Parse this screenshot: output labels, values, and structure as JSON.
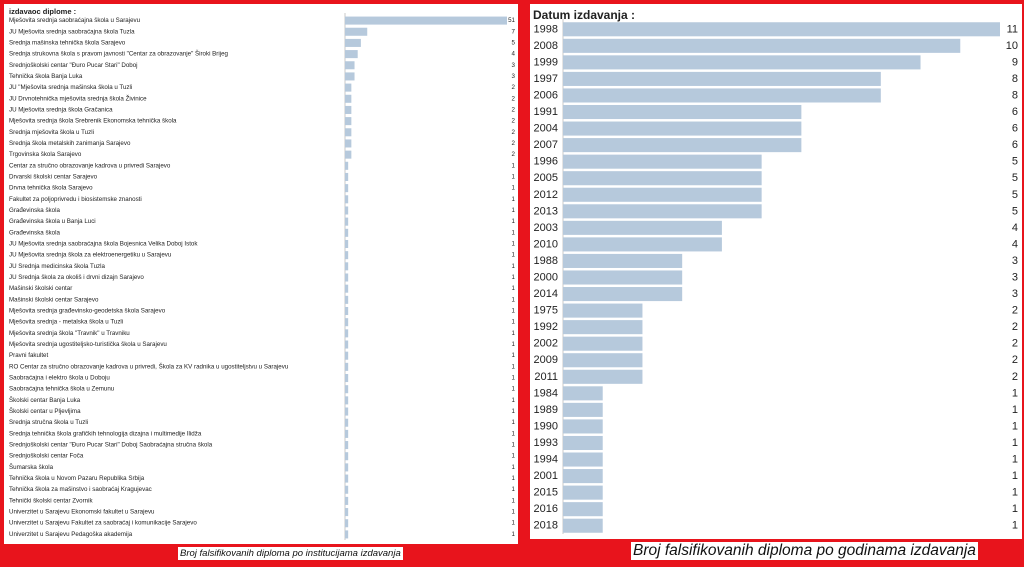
{
  "colors": {
    "bar": "#b6c9dc",
    "axis": "#c8c8c8",
    "frame": "#e8141c",
    "text": "#222222"
  },
  "chart_data": [
    {
      "type": "bar",
      "orientation": "horizontal",
      "title": "izdavaoc diplome :",
      "categories": [
        "Mješovita srednja saobraćajna škola u Sarajevu",
        "JU Mješovita srednja saobraćajna škola Tuzla",
        "Srednja mašinska tehnička škola Sarajevo",
        "Srednja strukovna škola s pravom javnosti \"Centar za obrazovanje\" Široki Brijeg",
        "Srednjoškolski centar \"Đuro Pucar Stari\" Doboj",
        "Tehnička škola Banja Luka",
        "JU \"Mješovita srednja mašinska škola u Tuzli",
        "JU Drvnotehnička mješovita srednja škola Živinice",
        "JU Mješovita srednja škola Gračanica",
        "Mješovita srednja škola Srebrenik Ekonomska tehnička škola",
        "Srednja mješovita škola u Tuzli",
        "Srednja škola metalskih zanimanja Sarajevo",
        "Trgovinska škola Sarajevo",
        "Centar za stručno obrazovanje kadrova u privredi Sarajevo",
        "Drvarski školski centar Sarajevo",
        "Drvna tehnička škola Sarajevo",
        "Fakultet za poljoprivredu i biosistemske znanosti",
        "Građevinska škola",
        "Građevinska škola u Banja Luci",
        "Građevinska škola",
        "JU Mješovita srednja saobraćajna škola Bojesnica Velika Doboj Istok",
        "JU Mješovita srednja škola za elektroenergetiku u Sarajevu",
        "JU Srednja medicinska škola Tuzla",
        "JU Srednja škola za okoliš i drvni dizajn Sarajevo",
        "Mašinski školski centar",
        "Mašinski školski centar Sarajevo",
        "Mješovita srednja građevinsko-geodetska škola Sarajevo",
        "Mješovita srednja - metalska škola u Tuzli",
        "Mješovita srednja škola \"Travnik\" u Travniku",
        "Mješovita srednja ugostiteljsko-turistička škola u Sarajevu",
        "Pravni fakultet",
        "RO Centar za stručno obrazovanje kadrova u privredi, Škola za KV radnika u ugostiteljstvu u Sarajevu",
        "Saobraćajna i elektro škola u Doboju",
        "Saobraćajna tehnička škola u Zemunu",
        "Školski centar Banja Luka",
        "Školski centar u Pljevljima",
        "Srednja stručna škola u Tuzli",
        "Srednja tehnička škola grafičkih tehnologija dizajna i multimedije Ilidža",
        "Srednjoškolski centar \"Đuro Pucar Stari\" Doboj Saobraćajna stručna škola",
        "Srednjoškolski centar Foča",
        "Šumarska škola",
        "Tehnička škola u Novom Pazaru Republika Srbija",
        "Tehnička škola za mašinstvo i saobraćaj Kragujevac",
        "Tehnički školski centar Zvornik",
        "Univerzitet u Sarajevu Ekonomski fakultet u Sarajevu",
        "Univerzitet u Sarajevu Fakultet za saobraćaj i komunikacije Sarajevo",
        "Univerzitet u Sarajevu Pedagoška akademija"
      ],
      "values": [
        51,
        7,
        5,
        4,
        3,
        3,
        2,
        2,
        2,
        2,
        2,
        2,
        2,
        1,
        1,
        1,
        1,
        1,
        1,
        1,
        1,
        1,
        1,
        1,
        1,
        1,
        1,
        1,
        1,
        1,
        1,
        1,
        1,
        1,
        1,
        1,
        1,
        1,
        1,
        1,
        1,
        1,
        1,
        1,
        1,
        1,
        1
      ],
      "caption": "Broj falsifikovanih diploma po institucijama izdavanja",
      "xlim": [
        0,
        51
      ]
    },
    {
      "type": "bar",
      "orientation": "horizontal",
      "title": "Datum izdavanja :",
      "categories": [
        "1998",
        "2008",
        "1999",
        "1997",
        "2006",
        "1991",
        "2004",
        "2007",
        "1996",
        "2005",
        "2012",
        "2013",
        "2003",
        "2010",
        "1988",
        "2000",
        "2014",
        "1975",
        "1992",
        "2002",
        "2009",
        "2011",
        "1984",
        "1989",
        "1990",
        "1993",
        "1994",
        "2001",
        "2015",
        "2016",
        "2018"
      ],
      "values": [
        11,
        10,
        9,
        8,
        8,
        6,
        6,
        6,
        5,
        5,
        5,
        5,
        4,
        4,
        3,
        3,
        3,
        2,
        2,
        2,
        2,
        2,
        1,
        1,
        1,
        1,
        1,
        1,
        1,
        1,
        1
      ],
      "caption": "Broj falsifikovanih diploma po godinama izdavanja",
      "xlim": [
        0,
        11
      ]
    }
  ]
}
